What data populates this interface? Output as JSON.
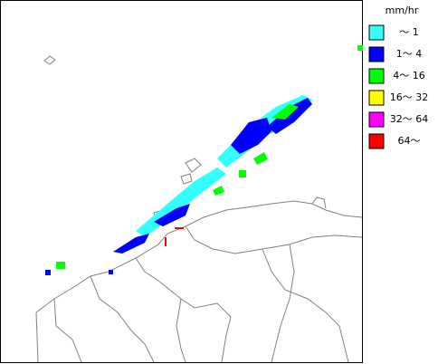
{
  "legend": {
    "title": "mm/hr",
    "items": [
      {
        "label": "～ 1",
        "color": "#33ffff"
      },
      {
        "label": "1～ 4",
        "color": "#0000ff"
      },
      {
        "label": "4～ 16",
        "color": "#00ff00"
      },
      {
        "label": "16～ 32",
        "color": "#ffff00"
      },
      {
        "label": "32～ 64",
        "color": "#ff00ff"
      },
      {
        "label": "64～",
        "color": "#ff0000"
      }
    ]
  }
}
